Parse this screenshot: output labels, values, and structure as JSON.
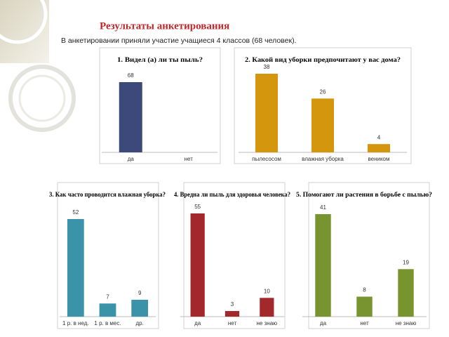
{
  "header": {
    "title": "Результаты анкетирования",
    "subtitle": "В анкетировании приняли участие  учащиеся 4 классов (68 человек)."
  },
  "chart_data": [
    {
      "type": "bar",
      "title": "1. Видел (а) ли ты пыль?",
      "categories": [
        "да",
        "нет"
      ],
      "values": [
        68,
        null
      ],
      "color": "#3b4a7a"
    },
    {
      "type": "bar",
      "title": "2. Какой вид уборки предпочитают у вас дома?",
      "categories": [
        "пылесосом",
        "влажная уборка",
        "веником"
      ],
      "values": [
        38,
        26,
        4
      ],
      "color": "#d4960c"
    },
    {
      "type": "bar",
      "title": "3. Как часто проводится влажная уборка?",
      "categories": [
        "1 р. в нед.",
        "1 р. в мес.",
        "др."
      ],
      "values": [
        52,
        7,
        9
      ],
      "color": "#3a93a8"
    },
    {
      "type": "bar",
      "title": "4. Вредна ли пыль для здоровья человека?",
      "categories": [
        "да",
        "нет",
        "не знаю"
      ],
      "values": [
        55,
        3,
        10
      ],
      "color": "#a3282c"
    },
    {
      "type": "bar",
      "title": "5. Помогают ли растения в борьбе с пылью?",
      "categories": [
        "да",
        "нет",
        "не знаю"
      ],
      "values": [
        41,
        8,
        19
      ],
      "color": "#77942f"
    }
  ]
}
